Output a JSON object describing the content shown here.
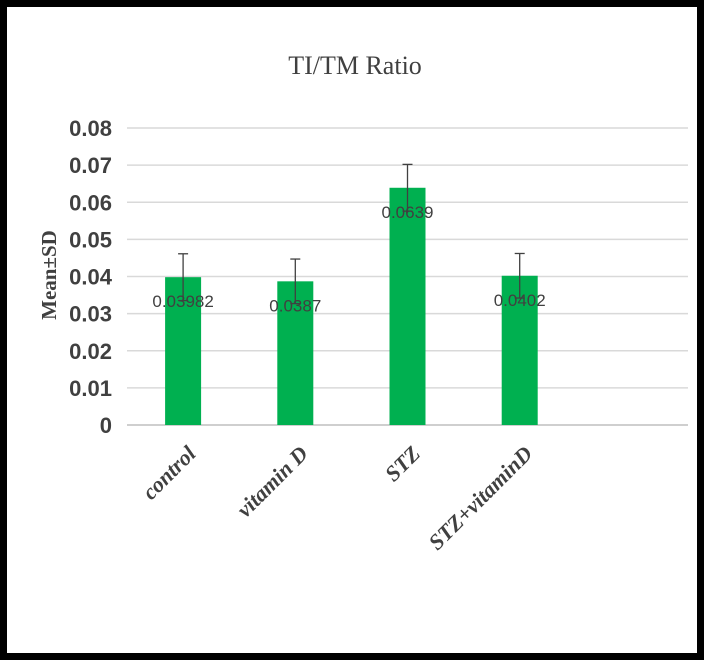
{
  "chart_data": {
    "type": "bar",
    "title": "TI/TM Ratio",
    "ylabel": "Mean±SD",
    "xlabel": "",
    "categories": [
      "control",
      "vitamin D",
      "STZ",
      "STZ+vitaminD"
    ],
    "series": [
      {
        "values": [
          0.03982,
          0.0387,
          0.0639,
          0.0402
        ],
        "error": [
          0.0063,
          0.006,
          0.0063,
          0.006
        ],
        "data_labels": [
          "0.03982",
          "0.0387",
          "0.0639",
          "0.0402"
        ]
      }
    ],
    "ylim": [
      0,
      0.08
    ],
    "yticks": [
      "0",
      "0.01",
      "0.02",
      "0.03",
      "0.04",
      "0.05",
      "0.06",
      "0.07",
      "0.08"
    ],
    "grid": true,
    "legend": "none",
    "colors": {
      "bar": "#00b050",
      "grid": "#d9d9d9",
      "text": "#404040",
      "frame": "#000000"
    }
  }
}
